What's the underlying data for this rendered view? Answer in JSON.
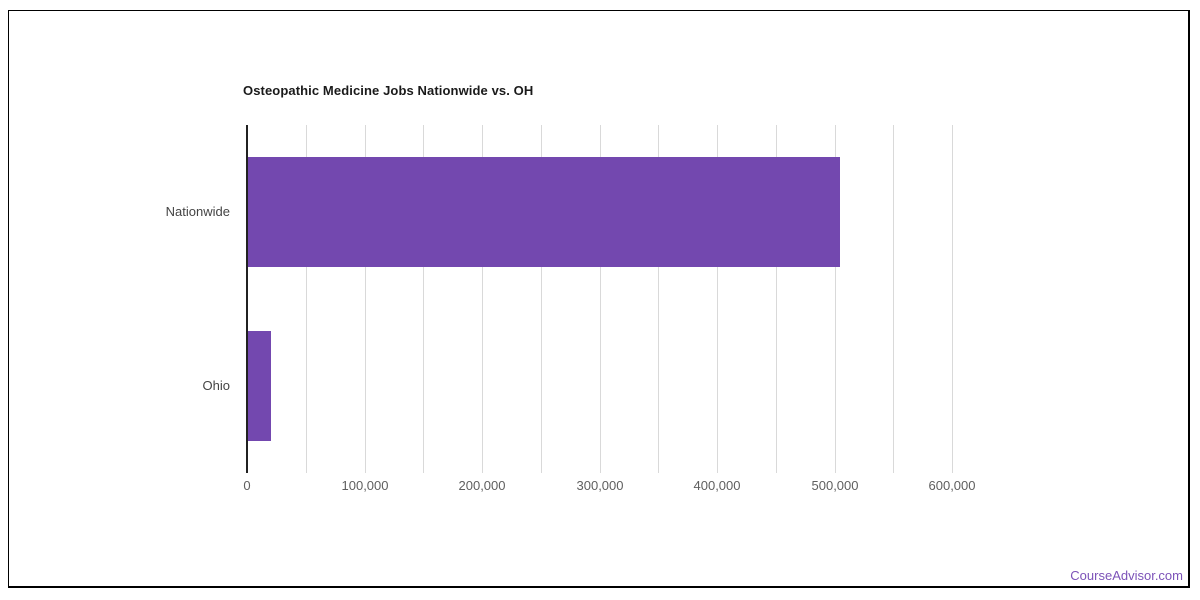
{
  "page": {
    "background": "#ffffff",
    "frame_border_color": "#000000"
  },
  "chart_data": {
    "type": "bar",
    "orientation": "horizontal",
    "title": "Osteopathic Medicine Jobs Nationwide vs. OH",
    "categories": [
      "Nationwide",
      "Ohio"
    ],
    "values": [
      504000,
      19600
    ],
    "xlabel": "",
    "ylabel": "",
    "xlim": [
      0,
      600000
    ],
    "x_major_ticks": [
      0,
      100000,
      200000,
      300000,
      400000,
      500000,
      600000
    ],
    "x_tick_labels": [
      "0",
      "100,000",
      "200,000",
      "300,000",
      "400,000",
      "500,000",
      "600,000"
    ],
    "minor_grid_step": 50000,
    "grid": true,
    "legend": "none",
    "bar_color": "#7348af",
    "gridline_color": "#d9d9d9",
    "baseline_color": "#212121",
    "title_color": "#1a1a1a",
    "category_label_color": "#444444",
    "tick_label_color": "#5f5f5f"
  },
  "footer": {
    "link_label": "CourseAdvisor.com",
    "link_color": "#7c52b8"
  }
}
